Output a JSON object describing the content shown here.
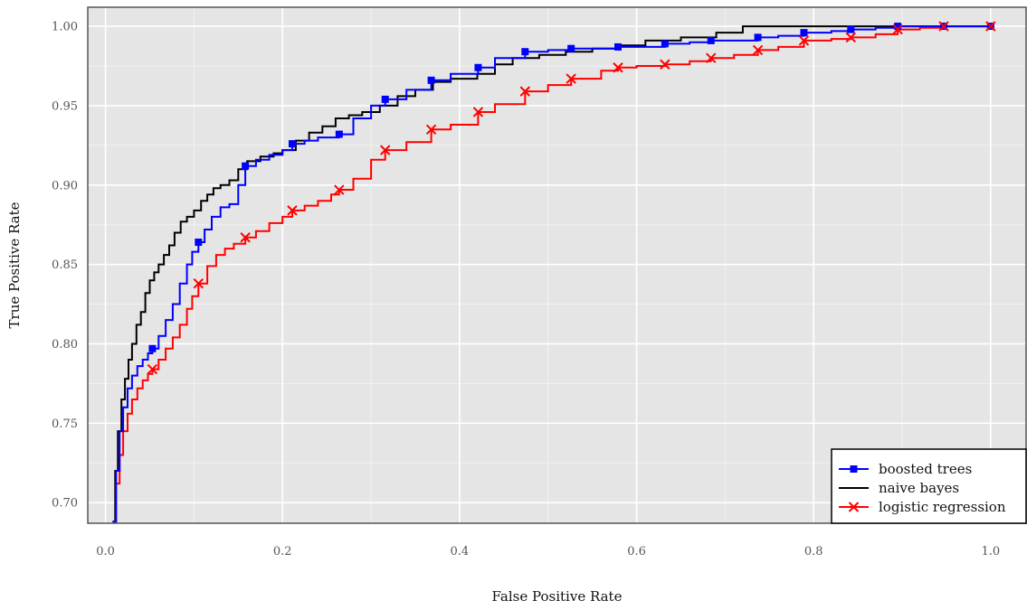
{
  "chart_data": {
    "type": "line",
    "title": "",
    "xlabel": "False Positive Rate",
    "ylabel": "True Positive Rate",
    "xlim": [
      -0.02,
      1.04
    ],
    "ylim": [
      0.687,
      1.012
    ],
    "xticks": [
      0.0,
      0.2,
      0.4,
      0.6,
      0.8,
      1.0
    ],
    "xtick_labels": [
      "0.0",
      "0.2",
      "0.4",
      "0.6",
      "0.8",
      "1.0"
    ],
    "yticks": [
      0.7,
      0.75,
      0.8,
      0.85,
      0.9,
      0.95,
      1.0
    ],
    "ytick_labels": [
      "0.70",
      "0.75",
      "0.80",
      "0.85",
      "0.90",
      "0.95",
      "1.00"
    ],
    "grid": true,
    "background": "#e5e5e5",
    "legend_position": "bottom-right",
    "series": [
      {
        "name": "boosted trees",
        "color": "#0000ff",
        "marker": "square",
        "x": [
          0.008,
          0.012,
          0.016,
          0.02,
          0.025,
          0.03,
          0.036,
          0.042,
          0.048,
          0.053,
          0.06,
          0.068,
          0.076,
          0.084,
          0.092,
          0.098,
          0.105,
          0.112,
          0.12,
          0.13,
          0.14,
          0.15,
          0.158,
          0.17,
          0.185,
          0.2,
          0.211,
          0.225,
          0.24,
          0.255,
          0.264,
          0.28,
          0.3,
          0.316,
          0.34,
          0.368,
          0.39,
          0.421,
          0.44,
          0.474,
          0.5,
          0.526,
          0.56,
          0.579,
          0.6,
          0.632,
          0.66,
          0.684,
          0.71,
          0.737,
          0.76,
          0.789,
          0.82,
          0.842,
          0.87,
          0.895,
          0.92,
          0.947,
          0.97,
          1.0
        ],
        "y": [
          0.688,
          0.72,
          0.745,
          0.76,
          0.772,
          0.78,
          0.786,
          0.79,
          0.794,
          0.797,
          0.805,
          0.815,
          0.825,
          0.838,
          0.85,
          0.858,
          0.864,
          0.872,
          0.88,
          0.886,
          0.888,
          0.9,
          0.912,
          0.916,
          0.919,
          0.922,
          0.926,
          0.928,
          0.93,
          0.93,
          0.932,
          0.942,
          0.95,
          0.954,
          0.96,
          0.966,
          0.97,
          0.974,
          0.98,
          0.984,
          0.985,
          0.986,
          0.986,
          0.987,
          0.987,
          0.989,
          0.99,
          0.991,
          0.991,
          0.993,
          0.994,
          0.996,
          0.997,
          0.998,
          0.999,
          1.0,
          1.0,
          1.0,
          1.0,
          1.0
        ],
        "marker_x": [
          0.053,
          0.105,
          0.158,
          0.211,
          0.264,
          0.316,
          0.368,
          0.421,
          0.474,
          0.526,
          0.579,
          0.632,
          0.684,
          0.737,
          0.789,
          0.842,
          0.895,
          0.947,
          1.0
        ],
        "marker_y": [
          0.797,
          0.864,
          0.912,
          0.926,
          0.932,
          0.954,
          0.966,
          0.974,
          0.984,
          0.986,
          0.987,
          0.989,
          0.991,
          0.993,
          0.996,
          0.998,
          1.0,
          1.0,
          1.0
        ]
      },
      {
        "name": "naive bayes",
        "color": "#000000",
        "marker": "none",
        "x": [
          0.008,
          0.011,
          0.014,
          0.018,
          0.022,
          0.026,
          0.03,
          0.035,
          0.04,
          0.045,
          0.05,
          0.055,
          0.06,
          0.066,
          0.072,
          0.078,
          0.085,
          0.092,
          0.1,
          0.108,
          0.115,
          0.122,
          0.13,
          0.14,
          0.15,
          0.16,
          0.175,
          0.19,
          0.2,
          0.215,
          0.23,
          0.245,
          0.26,
          0.275,
          0.29,
          0.31,
          0.33,
          0.35,
          0.37,
          0.39,
          0.42,
          0.44,
          0.46,
          0.49,
          0.52,
          0.55,
          0.58,
          0.61,
          0.65,
          0.69,
          0.72,
          0.78,
          0.85,
          0.9,
          0.95,
          1.0
        ],
        "y": [
          0.688,
          0.72,
          0.745,
          0.765,
          0.778,
          0.79,
          0.8,
          0.812,
          0.82,
          0.832,
          0.84,
          0.845,
          0.85,
          0.856,
          0.862,
          0.87,
          0.877,
          0.88,
          0.884,
          0.89,
          0.894,
          0.898,
          0.9,
          0.903,
          0.91,
          0.915,
          0.918,
          0.92,
          0.922,
          0.928,
          0.933,
          0.937,
          0.942,
          0.944,
          0.946,
          0.95,
          0.956,
          0.96,
          0.965,
          0.967,
          0.97,
          0.976,
          0.98,
          0.982,
          0.984,
          0.986,
          0.988,
          0.991,
          0.993,
          0.996,
          1.0,
          1.0,
          1.0,
          1.0,
          1.0,
          1.0
        ]
      },
      {
        "name": "logistic regression",
        "color": "#ff0000",
        "marker": "x",
        "x": [
          0.008,
          0.012,
          0.016,
          0.02,
          0.025,
          0.03,
          0.036,
          0.042,
          0.048,
          0.053,
          0.06,
          0.068,
          0.076,
          0.084,
          0.092,
          0.098,
          0.105,
          0.115,
          0.125,
          0.135,
          0.145,
          0.158,
          0.17,
          0.185,
          0.2,
          0.211,
          0.225,
          0.24,
          0.255,
          0.264,
          0.28,
          0.3,
          0.316,
          0.34,
          0.368,
          0.39,
          0.421,
          0.44,
          0.474,
          0.5,
          0.526,
          0.56,
          0.579,
          0.6,
          0.632,
          0.66,
          0.684,
          0.71,
          0.737,
          0.76,
          0.789,
          0.82,
          0.842,
          0.87,
          0.895,
          0.92,
          0.947,
          0.97,
          1.0
        ],
        "y": [
          0.688,
          0.712,
          0.73,
          0.745,
          0.756,
          0.765,
          0.772,
          0.777,
          0.781,
          0.784,
          0.79,
          0.797,
          0.804,
          0.812,
          0.822,
          0.83,
          0.838,
          0.849,
          0.856,
          0.86,
          0.863,
          0.867,
          0.871,
          0.876,
          0.88,
          0.884,
          0.887,
          0.89,
          0.894,
          0.897,
          0.904,
          0.916,
          0.922,
          0.927,
          0.935,
          0.938,
          0.946,
          0.951,
          0.959,
          0.963,
          0.967,
          0.972,
          0.974,
          0.975,
          0.976,
          0.978,
          0.98,
          0.982,
          0.985,
          0.987,
          0.991,
          0.992,
          0.993,
          0.995,
          0.998,
          0.999,
          1.0,
          1.0,
          1.0
        ],
        "marker_x": [
          0.053,
          0.105,
          0.158,
          0.211,
          0.264,
          0.316,
          0.368,
          0.421,
          0.474,
          0.526,
          0.579,
          0.632,
          0.684,
          0.737,
          0.789,
          0.842,
          0.895,
          0.947,
          1.0
        ],
        "marker_y": [
          0.784,
          0.838,
          0.867,
          0.884,
          0.897,
          0.922,
          0.935,
          0.946,
          0.959,
          0.967,
          0.974,
          0.976,
          0.98,
          0.985,
          0.991,
          0.993,
          0.998,
          1.0,
          1.0
        ]
      }
    ]
  }
}
